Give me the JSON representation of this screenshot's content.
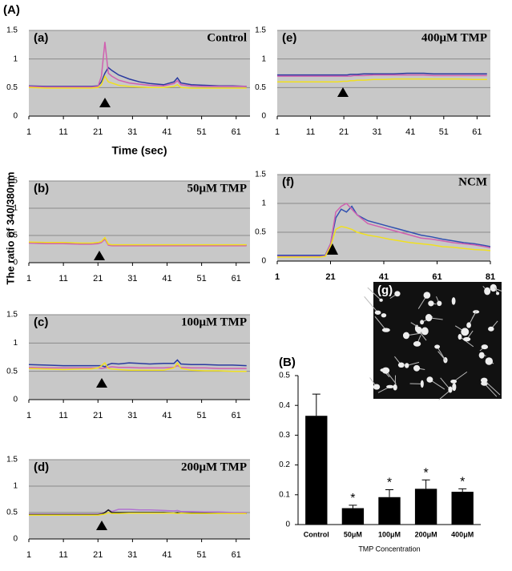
{
  "figure": {
    "label": "(A)",
    "ylabel": "The ratio of 340/380nm"
  },
  "image": {
    "label": "(g)"
  },
  "chart_data": [
    {
      "type": "line",
      "label": "(a)",
      "title": "Control",
      "xlabel": "Time (sec)",
      "x": [
        1,
        6,
        11,
        16,
        19,
        21,
        22,
        23,
        24,
        25,
        27,
        30,
        33,
        36,
        40,
        43,
        44,
        45,
        48,
        52,
        56,
        60,
        64
      ],
      "xlim": [
        1,
        65
      ],
      "xticks": [
        1,
        11,
        21,
        31,
        41,
        51,
        61
      ],
      "ylim": [
        0,
        1.5
      ],
      "yticks": [
        0,
        0.5,
        1,
        1.5
      ],
      "grid": true,
      "series": [
        {
          "color": "#2a3aa0",
          "values": [
            0.53,
            0.52,
            0.52,
            0.52,
            0.52,
            0.53,
            0.6,
            0.75,
            0.85,
            0.8,
            0.72,
            0.65,
            0.6,
            0.57,
            0.55,
            0.6,
            0.67,
            0.58,
            0.55,
            0.54,
            0.53,
            0.53,
            0.52
          ]
        },
        {
          "color": "#d060b0",
          "values": [
            0.52,
            0.51,
            0.51,
            0.51,
            0.51,
            0.52,
            0.7,
            1.3,
            0.75,
            0.7,
            0.63,
            0.58,
            0.56,
            0.54,
            0.53,
            0.57,
            0.62,
            0.55,
            0.53,
            0.52,
            0.52,
            0.52,
            0.52
          ]
        },
        {
          "color": "#f0e020",
          "values": [
            0.5,
            0.49,
            0.49,
            0.49,
            0.49,
            0.5,
            0.55,
            0.7,
            0.6,
            0.58,
            0.54,
            0.52,
            0.51,
            0.5,
            0.5,
            0.52,
            0.55,
            0.5,
            0.49,
            0.49,
            0.49,
            0.49,
            0.49
          ]
        }
      ]
    },
    {
      "type": "line",
      "label": "(b)",
      "title": "50μM TMP",
      "x": [
        1,
        6,
        11,
        16,
        19,
        21,
        22,
        23,
        24,
        25,
        27,
        30,
        33,
        36,
        40,
        43,
        44,
        45,
        48,
        52,
        56,
        60,
        64
      ],
      "xlim": [
        1,
        65
      ],
      "xticks": [
        1,
        11,
        21,
        31,
        41,
        51,
        61
      ],
      "ylim": [
        0,
        1.5
      ],
      "yticks": [
        0,
        0.5,
        1,
        1.5
      ],
      "grid": true,
      "series": [
        {
          "color": "#2a3aa0",
          "values": [
            0.37,
            0.36,
            0.36,
            0.35,
            0.35,
            0.36,
            0.38,
            0.45,
            0.33,
            0.32,
            0.32,
            0.32,
            0.32,
            0.32,
            0.32,
            0.32,
            0.32,
            0.32,
            0.32,
            0.32,
            0.32,
            0.32,
            0.32
          ]
        },
        {
          "color": "#d060b0",
          "values": [
            0.36,
            0.35,
            0.35,
            0.34,
            0.34,
            0.35,
            0.37,
            0.43,
            0.32,
            0.31,
            0.31,
            0.31,
            0.31,
            0.31,
            0.31,
            0.31,
            0.31,
            0.31,
            0.31,
            0.31,
            0.31,
            0.31,
            0.31
          ]
        },
        {
          "color": "#f0e020",
          "values": [
            0.38,
            0.37,
            0.37,
            0.36,
            0.36,
            0.37,
            0.39,
            0.46,
            0.34,
            0.33,
            0.33,
            0.33,
            0.33,
            0.33,
            0.33,
            0.33,
            0.33,
            0.33,
            0.33,
            0.33,
            0.33,
            0.33,
            0.33
          ]
        }
      ]
    },
    {
      "type": "line",
      "label": "(c)",
      "title": "100μM TMP",
      "x": [
        1,
        6,
        11,
        16,
        19,
        21,
        22,
        23,
        24,
        25,
        27,
        30,
        33,
        36,
        40,
        43,
        44,
        45,
        48,
        52,
        56,
        60,
        64
      ],
      "xlim": [
        1,
        65
      ],
      "xticks": [
        1,
        11,
        21,
        31,
        41,
        51,
        61
      ],
      "ylim": [
        0,
        1.5
      ],
      "yticks": [
        0,
        0.5,
        1,
        1.5
      ],
      "grid": true,
      "series": [
        {
          "color": "#2a3aa0",
          "values": [
            0.62,
            0.61,
            0.6,
            0.6,
            0.6,
            0.6,
            0.6,
            0.58,
            0.62,
            0.64,
            0.63,
            0.65,
            0.64,
            0.63,
            0.64,
            0.64,
            0.7,
            0.63,
            0.62,
            0.62,
            0.61,
            0.61,
            0.6
          ]
        },
        {
          "color": "#d060b0",
          "values": [
            0.57,
            0.56,
            0.56,
            0.56,
            0.56,
            0.56,
            0.55,
            0.56,
            0.57,
            0.58,
            0.57,
            0.57,
            0.56,
            0.56,
            0.56,
            0.57,
            0.6,
            0.57,
            0.56,
            0.56,
            0.55,
            0.55,
            0.55
          ]
        },
        {
          "color": "#f0e020",
          "values": [
            0.55,
            0.54,
            0.53,
            0.54,
            0.54,
            0.56,
            0.6,
            0.65,
            0.55,
            0.54,
            0.53,
            0.52,
            0.52,
            0.52,
            0.52,
            0.56,
            0.65,
            0.55,
            0.52,
            0.51,
            0.51,
            0.5,
            0.5
          ]
        }
      ]
    },
    {
      "type": "line",
      "label": "(d)",
      "title": "200μM TMP",
      "x": [
        1,
        6,
        11,
        16,
        19,
        21,
        22,
        23,
        24,
        25,
        27,
        30,
        33,
        36,
        40,
        43,
        44,
        45,
        48,
        52,
        56,
        60,
        64
      ],
      "xlim": [
        1,
        65
      ],
      "xticks": [
        1,
        11,
        21,
        31,
        41,
        51,
        61
      ],
      "ylim": [
        0,
        1.5
      ],
      "yticks": [
        0,
        0.5,
        1,
        1.5
      ],
      "grid": true,
      "series": [
        {
          "color": "#b070d0",
          "values": [
            0.47,
            0.47,
            0.47,
            0.47,
            0.47,
            0.47,
            0.48,
            0.5,
            0.55,
            0.52,
            0.56,
            0.56,
            0.55,
            0.55,
            0.54,
            0.53,
            0.54,
            0.52,
            0.52,
            0.51,
            0.51,
            0.5,
            0.5
          ]
        },
        {
          "color": "#202020",
          "values": [
            0.46,
            0.46,
            0.46,
            0.46,
            0.46,
            0.46,
            0.47,
            0.5,
            0.55,
            0.5,
            0.5,
            0.5,
            0.5,
            0.5,
            0.5,
            0.49,
            0.5,
            0.49,
            0.49,
            0.49,
            0.48,
            0.48,
            0.48
          ]
        },
        {
          "color": "#f0e020",
          "values": [
            0.45,
            0.45,
            0.45,
            0.45,
            0.45,
            0.45,
            0.46,
            0.47,
            0.5,
            0.48,
            0.48,
            0.49,
            0.49,
            0.49,
            0.49,
            0.49,
            0.48,
            0.49,
            0.48,
            0.48,
            0.48,
            0.48,
            0.48
          ]
        }
      ]
    },
    {
      "type": "line",
      "label": "(e)",
      "title": "400μM TMP",
      "x": [
        1,
        6,
        11,
        16,
        19,
        21,
        22,
        23,
        24,
        25,
        27,
        30,
        33,
        36,
        40,
        43,
        44,
        45,
        48,
        52,
        56,
        60,
        64
      ],
      "xlim": [
        1,
        65
      ],
      "xticks": [
        1,
        11,
        21,
        31,
        41,
        51,
        61
      ],
      "ylim": [
        0,
        1.5
      ],
      "yticks": [
        0,
        0.5,
        1,
        1.5
      ],
      "grid": true,
      "series": [
        {
          "color": "#2a3aa0",
          "values": [
            0.72,
            0.72,
            0.72,
            0.72,
            0.72,
            0.72,
            0.72,
            0.73,
            0.73,
            0.73,
            0.74,
            0.74,
            0.74,
            0.74,
            0.75,
            0.75,
            0.75,
            0.75,
            0.74,
            0.74,
            0.74,
            0.74,
            0.74
          ]
        },
        {
          "color": "#d060b0",
          "values": [
            0.7,
            0.7,
            0.7,
            0.7,
            0.7,
            0.7,
            0.7,
            0.7,
            0.71,
            0.71,
            0.71,
            0.72,
            0.72,
            0.72,
            0.72,
            0.72,
            0.72,
            0.72,
            0.71,
            0.71,
            0.71,
            0.71,
            0.71
          ]
        },
        {
          "color": "#f0e020",
          "values": [
            0.6,
            0.6,
            0.6,
            0.6,
            0.6,
            0.61,
            0.61,
            0.62,
            0.62,
            0.63,
            0.63,
            0.64,
            0.64,
            0.65,
            0.65,
            0.65,
            0.65,
            0.65,
            0.65,
            0.65,
            0.65,
            0.64,
            0.64
          ]
        }
      ]
    },
    {
      "type": "line",
      "label": "(f)",
      "title": "NCM",
      "x": [
        1,
        5,
        9,
        13,
        17,
        19,
        21,
        23,
        25,
        27,
        29,
        31,
        35,
        39,
        43,
        47,
        51,
        55,
        59,
        63,
        67,
        71,
        75,
        79,
        81
      ],
      "xlim": [
        1,
        81
      ],
      "xticks": [
        1,
        21,
        41,
        61,
        81
      ],
      "ylim": [
        0,
        1.5
      ],
      "yticks": [
        0,
        0.5,
        1,
        1.5
      ],
      "grid": true,
      "series": [
        {
          "color": "#3050b0",
          "values": [
            0.1,
            0.1,
            0.1,
            0.1,
            0.1,
            0.1,
            0.3,
            0.75,
            0.9,
            0.85,
            0.95,
            0.8,
            0.7,
            0.65,
            0.6,
            0.55,
            0.5,
            0.45,
            0.42,
            0.38,
            0.35,
            0.32,
            0.3,
            0.27,
            0.25
          ]
        },
        {
          "color": "#d060b0",
          "values": [
            0.08,
            0.08,
            0.08,
            0.08,
            0.08,
            0.09,
            0.3,
            0.85,
            0.95,
            1.0,
            0.9,
            0.8,
            0.65,
            0.6,
            0.55,
            0.5,
            0.45,
            0.4,
            0.38,
            0.35,
            0.32,
            0.3,
            0.28,
            0.25,
            0.23
          ]
        },
        {
          "color": "#f0e020",
          "values": [
            0.07,
            0.07,
            0.07,
            0.07,
            0.07,
            0.08,
            0.25,
            0.55,
            0.6,
            0.58,
            0.55,
            0.5,
            0.45,
            0.42,
            0.38,
            0.35,
            0.32,
            0.3,
            0.28,
            0.25,
            0.24,
            0.22,
            0.2,
            0.19,
            0.18
          ]
        }
      ]
    },
    {
      "type": "bar",
      "label": "(B)",
      "xlabel": "TMP Concentration",
      "categories": [
        "Control",
        "50μM",
        "100μM",
        "200μM",
        "400μM"
      ],
      "values": [
        0.365,
        0.055,
        0.092,
        0.12,
        0.11
      ],
      "errors": [
        0.073,
        0.01,
        0.025,
        0.03,
        0.01
      ],
      "annotations": [
        null,
        "*",
        "*",
        "*",
        "*"
      ],
      "color": "#000000",
      "ylim": [
        0,
        0.5
      ],
      "yticks": [
        0,
        0.1,
        0.2,
        0.3,
        0.4,
        0.5
      ]
    }
  ]
}
